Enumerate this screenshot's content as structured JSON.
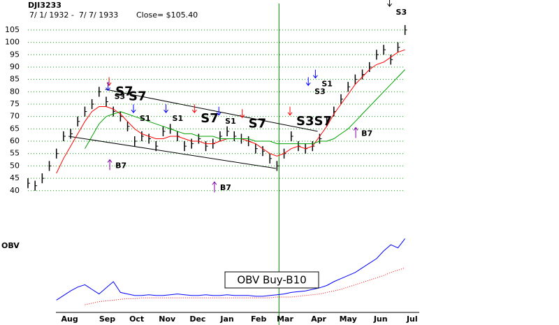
{
  "chart_data": [
    {
      "type": "ohlc",
      "title": "DJI3233",
      "subtitle": "7/ 1/ 1932 -  7/ 7/ 1933",
      "close_label": "Close= $105.40",
      "x": [
        0,
        7,
        14,
        21,
        28,
        35,
        42,
        49,
        56,
        63,
        70,
        77,
        84,
        91,
        98,
        105,
        112,
        119,
        126,
        133,
        140,
        147,
        154,
        161,
        168,
        175,
        182,
        189,
        196,
        203,
        210,
        217,
        224,
        231,
        238,
        245,
        252,
        259,
        266,
        273,
        280,
        287,
        294,
        301,
        308,
        315,
        322,
        329,
        336,
        343,
        350,
        357,
        364,
        371
      ],
      "series": [
        {
          "color": "#000000",
          "values": [
            43,
            42,
            45,
            50,
            55,
            62,
            63,
            68,
            72,
            75,
            80,
            76,
            72,
            70,
            66,
            60,
            62,
            61,
            58,
            64,
            65,
            62,
            58,
            59,
            61,
            58,
            59,
            62,
            64,
            62,
            61,
            60,
            57,
            56,
            53,
            50,
            55,
            62,
            58,
            57,
            58,
            61,
            68,
            72,
            77,
            82,
            85,
            87,
            90,
            95,
            97,
            93,
            98,
            105
          ],
          "high": [
            45,
            44,
            47,
            52,
            57,
            64,
            65,
            70,
            74,
            77,
            82,
            78,
            74,
            72,
            68,
            62,
            64,
            63,
            60,
            66,
            67,
            64,
            60,
            61,
            63,
            60,
            61,
            64,
            66,
            64,
            63,
            62,
            59,
            58,
            55,
            52,
            57,
            64,
            60,
            59,
            60,
            63,
            70,
            74,
            79,
            84,
            87,
            89,
            92,
            97,
            99,
            95,
            100,
            107
          ],
          "low": [
            41,
            40,
            43,
            48,
            53,
            60,
            61,
            66,
            70,
            73,
            78,
            74,
            70,
            68,
            64,
            58,
            60,
            59,
            56,
            62,
            63,
            60,
            56,
            57,
            59,
            56,
            57,
            60,
            62,
            60,
            59,
            58,
            55,
            54,
            51,
            48,
            53,
            60,
            56,
            55,
            56,
            59,
            66,
            70,
            75,
            80,
            83,
            85,
            88,
            93,
            95,
            91,
            96,
            103
          ]
        },
        {
          "color": "#ff0000",
          "values": [
            null,
            null,
            null,
            null,
            47,
            53,
            58,
            63,
            68,
            72,
            74,
            74,
            73,
            71,
            68,
            65,
            63,
            62,
            61,
            61,
            62,
            62,
            61,
            60,
            60,
            59,
            59,
            60,
            61,
            61,
            61,
            60,
            59,
            57,
            55,
            54,
            55,
            57,
            58,
            57,
            58,
            62,
            66,
            71,
            75,
            79,
            83,
            86,
            89,
            91,
            92,
            94,
            96,
            97
          ]
        },
        {
          "color": "#00a000",
          "values": [
            null,
            null,
            null,
            null,
            null,
            null,
            null,
            null,
            57,
            62,
            67,
            70,
            71,
            72,
            71,
            70,
            69,
            68,
            67,
            66,
            65,
            64,
            63,
            63,
            62,
            62,
            62,
            61,
            61,
            61,
            61,
            61,
            60,
            60,
            60,
            59,
            59,
            59,
            59,
            59,
            59,
            60,
            60,
            61,
            63,
            65,
            68,
            71,
            74,
            77,
            80,
            83,
            86,
            89
          ]
        }
      ],
      "xlim": [
        0,
        385
      ],
      "ylim": [
        34,
        116
      ],
      "yticks": [
        40,
        45,
        50,
        55,
        60,
        65,
        70,
        75,
        80,
        85,
        90,
        95,
        100,
        105
      ],
      "grid": true,
      "grid_color": "#00a000",
      "trendlines": [
        {
          "x": [
            76,
            285
          ],
          "y": [
            81,
            64
          ]
        },
        {
          "x": [
            40,
            244
          ],
          "y": [
            62,
            49
          ]
        }
      ],
      "vline": {
        "x": 247,
        "color": "#008000"
      },
      "annotations": [
        {
          "label": "S7",
          "x": 86,
          "y": 80,
          "style": "large",
          "arrow": "down",
          "color": "#ff0000"
        },
        {
          "label": "S3",
          "x": 85,
          "y": 78,
          "style": "small",
          "arrow": "down",
          "color": "#0000ff"
        },
        {
          "label": "S7",
          "x": 99,
          "y": 78,
          "style": "large"
        },
        {
          "label": "S1",
          "x": 110,
          "y": 69,
          "style": "small",
          "arrow": "down",
          "color": "#0000ff"
        },
        {
          "label": "S1",
          "x": 142,
          "y": 69,
          "style": "small",
          "arrow": "down",
          "color": "#0000ff"
        },
        {
          "label": "S7",
          "x": 170,
          "y": 69,
          "style": "large",
          "arrow": "down",
          "color": "#ff0000"
        },
        {
          "label": "S1",
          "x": 194,
          "y": 68,
          "style": "small",
          "arrow": "down",
          "color": "#0000ff"
        },
        {
          "label": "S7",
          "x": 217,
          "y": 67,
          "style": "large",
          "arrow": "down",
          "color": "#ff0000"
        },
        {
          "label": "S3S7",
          "x": 264,
          "y": 68,
          "style": "large",
          "arrow": "down",
          "color": "#ff0000"
        },
        {
          "label": "S1",
          "x": 289,
          "y": 83,
          "style": "small",
          "arrow": "down",
          "color": "#0000ff"
        },
        {
          "label": "S3",
          "x": 282,
          "y": 80,
          "style": "small",
          "arrow": "down",
          "color": "#0000ff"
        },
        {
          "label": "B7",
          "x": 86,
          "y": 50,
          "style": "small",
          "arrow": "up",
          "color": "#8000a0"
        },
        {
          "label": "B7",
          "x": 189,
          "y": 41,
          "style": "small",
          "arrow": "up",
          "color": "#8000a0"
        },
        {
          "label": "B7",
          "x": 328,
          "y": 63,
          "style": "small",
          "arrow": "up",
          "color": "#8000a0"
        },
        {
          "label": "S3",
          "x": 362,
          "y": 112,
          "style": "small",
          "arrow": "down",
          "color": "#000000"
        }
      ]
    },
    {
      "type": "line",
      "title": "OBV",
      "x": [
        0,
        7,
        14,
        21,
        28,
        35,
        42,
        49,
        56,
        63,
        70,
        77,
        84,
        91,
        98,
        105,
        112,
        119,
        126,
        133,
        140,
        147,
        154,
        161,
        168,
        175,
        182,
        189,
        196,
        203,
        210,
        217,
        224,
        231,
        238,
        245,
        252,
        259,
        266,
        273,
        280,
        287,
        294,
        301,
        308,
        315,
        322,
        329,
        336,
        343,
        350,
        357,
        364,
        371
      ],
      "series": [
        {
          "color": "#0000ff",
          "values": [
            null,
            null,
            null,
            null,
            16,
            22,
            28,
            33,
            36,
            30,
            24,
            32,
            40,
            26,
            24,
            22,
            22,
            23,
            22,
            22,
            23,
            24,
            23,
            22,
            22,
            23,
            22,
            22,
            23,
            22,
            22,
            22,
            21,
            21,
            22,
            23,
            24,
            26,
            27,
            28,
            30,
            32,
            35,
            40,
            44,
            48,
            52,
            58,
            64,
            70,
            80,
            88,
            84,
            96
          ]
        },
        {
          "color": "#ff0000",
          "style": "dotted",
          "values": [
            null,
            null,
            null,
            null,
            null,
            null,
            null,
            null,
            10,
            12,
            14,
            15,
            16,
            17,
            18,
            18,
            19,
            19,
            19,
            19,
            19,
            19,
            19,
            19,
            19,
            19,
            19,
            19,
            19,
            19,
            19,
            19,
            19,
            19,
            19,
            20,
            20,
            20,
            21,
            22,
            23,
            24,
            26,
            28,
            30,
            33,
            36,
            39,
            42,
            45,
            48,
            52,
            55,
            58
          ]
        }
      ],
      "xlim": [
        0,
        385
      ],
      "ylim": [
        0,
        100
      ],
      "xticks": [
        {
          "value": 41,
          "label": "Aug"
        },
        {
          "value": 78,
          "label": "Sep"
        },
        {
          "value": 107,
          "label": "Oct"
        },
        {
          "value": 137,
          "label": "Nov"
        },
        {
          "value": 167,
          "label": "Dec"
        },
        {
          "value": 196,
          "label": "Jan"
        },
        {
          "value": 227,
          "label": "Feb"
        },
        {
          "value": 253,
          "label": "Mar"
        },
        {
          "value": 286,
          "label": "Apr"
        },
        {
          "value": 315,
          "label": "May"
        },
        {
          "value": 347,
          "label": "Jun"
        },
        {
          "value": 378,
          "label": "Jul"
        }
      ],
      "annotation": {
        "label": "OBV Buy-B10"
      }
    }
  ]
}
